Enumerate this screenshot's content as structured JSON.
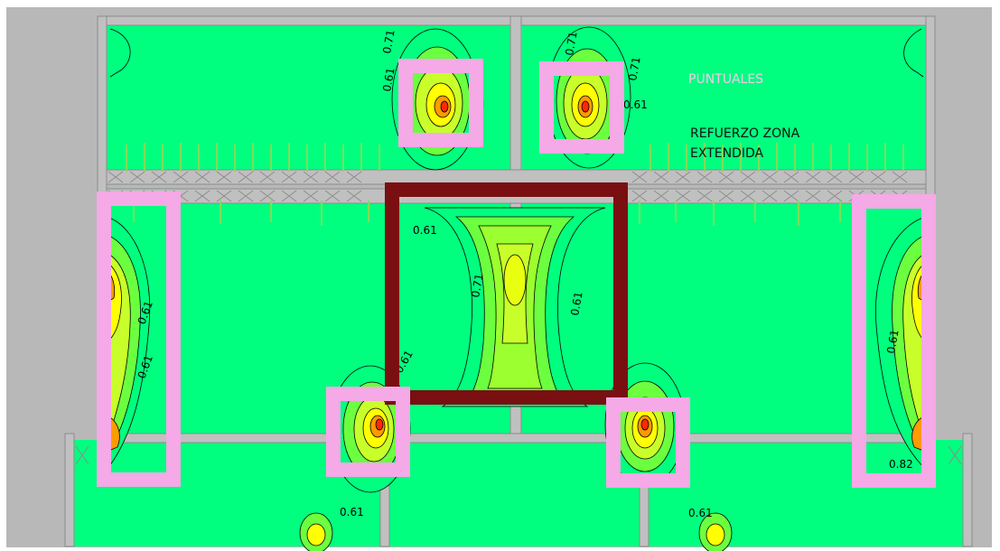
{
  "annotations": {
    "puntuales": "PUNTUALES",
    "refuerzo_line1": "REFUERZO ZONA",
    "refuerzo_line2": "EXTENDIDA"
  },
  "contour_labels": {
    "l_071_top": "0.71",
    "l_061_top": "0.61",
    "l_071_top_right": "0.71",
    "l_061_top_right": "0.61",
    "l_061_center_top": "0.61",
    "l_071_center": "0.71",
    "l_061_center_right": "0.61",
    "l_061_center_bottom": "0.61",
    "l_061_left": "0.61",
    "l_061_right": "0.61",
    "l_082_right": "0.82",
    "l_061_bottom_left": "0.61",
    "l_061_bottom_right": "0.61"
  },
  "colors": {
    "background": "#b8b8b8",
    "slab_fill": "#00ff7f",
    "wall": "#c0c0c0",
    "wall_stroke": "#8c8c8c",
    "contour_line": "#000000",
    "hotspot_yellow": "#ffff00",
    "hotspot_orange": "#ff9a00",
    "hotspot_red": "#ff2a00",
    "point_box": "#f5a9e6",
    "center_box": "#7a0f12",
    "annotation_text": "#f5c9ef",
    "annotation_text_dark": "#111111"
  }
}
